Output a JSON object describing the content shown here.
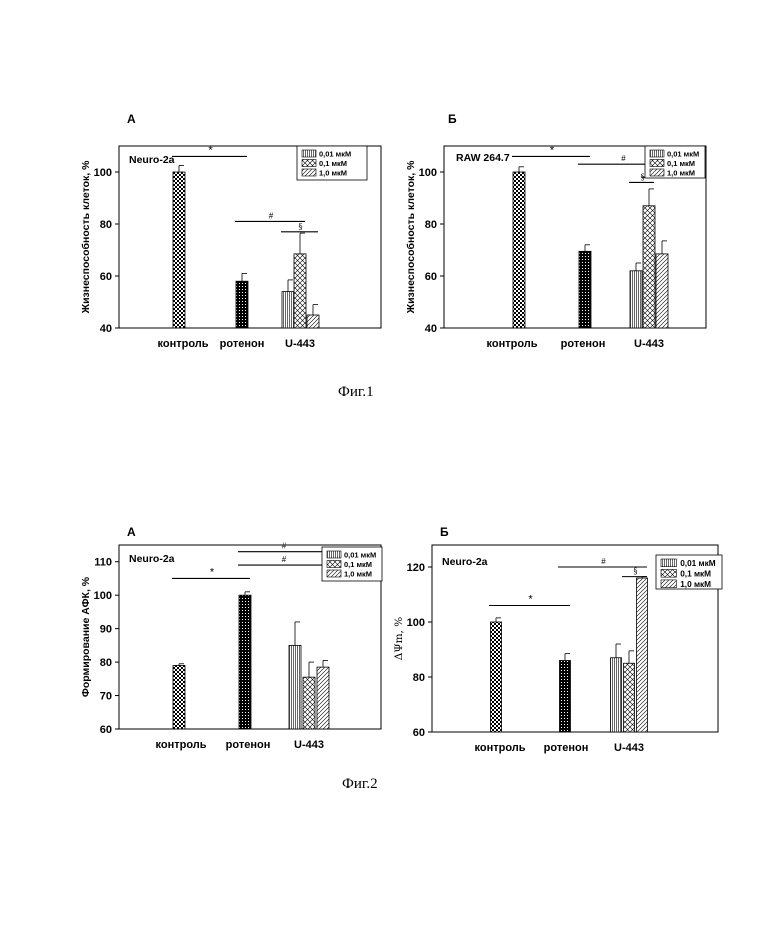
{
  "figures": [
    {
      "caption": "Фиг.1"
    },
    {
      "caption": "Фиг.2"
    }
  ],
  "legend_labels": [
    "0,01 мкМ",
    "0,1 мкМ",
    "1,0 мкМ"
  ],
  "chart_data": [
    {
      "type": "bar",
      "panel": "А",
      "subtitle": "Neuro-2a",
      "ylabel": "Жизнеспособность клеток, %",
      "ylim": [
        40,
        110
      ],
      "yticks": [
        40,
        60,
        80,
        100
      ],
      "categories": [
        "контроль",
        "ротенон",
        "U-443"
      ],
      "bars": [
        {
          "category": "контроль",
          "value": 100,
          "error": 2.5,
          "pattern": "checker"
        },
        {
          "category": "ротенон",
          "value": 58,
          "error": 3,
          "pattern": "dark"
        },
        {
          "category": "U-443",
          "series": "0,01 мкМ",
          "value": 54,
          "error": 4.5,
          "pattern": "vlines"
        },
        {
          "category": "U-443",
          "series": "0,1 мкМ",
          "value": 68.5,
          "error": 8,
          "pattern": "cross"
        },
        {
          "category": "U-443",
          "series": "1,0 мкМ",
          "value": 45,
          "error": 4,
          "pattern": "diag"
        }
      ],
      "annotations": [
        {
          "symbol": "*",
          "bracket": true,
          "from": "контроль",
          "to": "ротенон",
          "y": 106
        },
        {
          "symbol": "#",
          "bracket": true,
          "from": "ротенон",
          "to": "U-443:0,1 мкМ",
          "y": 81
        },
        {
          "symbol": "§",
          "bracket": false,
          "from": "U-443:0,01 мкМ",
          "to": "U-443:1,0 мкМ",
          "y": 77
        }
      ],
      "legend_position": "top-right",
      "grid": false
    },
    {
      "type": "bar",
      "panel": "Б",
      "subtitle": "RAW 264.7",
      "ylabel": "Жизнеспособность клеток, %",
      "ylim": [
        40,
        110
      ],
      "yticks": [
        40,
        60,
        80,
        100
      ],
      "categories": [
        "контроль",
        "ротенон",
        "U-443"
      ],
      "bars": [
        {
          "category": "контроль",
          "value": 100,
          "error": 2,
          "pattern": "checker"
        },
        {
          "category": "ротенон",
          "value": 69.5,
          "error": 2.5,
          "pattern": "dark"
        },
        {
          "category": "U-443",
          "series": "0,01 мкМ",
          "value": 62,
          "error": 3,
          "pattern": "vlines"
        },
        {
          "category": "U-443",
          "series": "0,1 мкМ",
          "value": 87,
          "error": 6.5,
          "pattern": "cross"
        },
        {
          "category": "U-443",
          "series": "1,0 мкМ",
          "value": 68.5,
          "error": 5,
          "pattern": "diag"
        }
      ],
      "annotations": [
        {
          "symbol": "*",
          "bracket": true,
          "from": "контроль",
          "to": "ротенон",
          "y": 106
        },
        {
          "symbol": "#",
          "bracket": true,
          "from": "ротенон",
          "to": "U-443:1,0 мкМ",
          "y": 103
        },
        {
          "symbol": "§",
          "bracket": false,
          "from": "U-443:0,01 мкМ",
          "to": "U-443:0,1 мкМ",
          "y": 96
        },
        {
          "symbol": "§",
          "bracket": false,
          "from": "U-443:0,1 мкМ",
          "to": "U-443:1,0 мкМ",
          "y": 98
        }
      ],
      "legend_position": "top-right",
      "grid": false
    },
    {
      "type": "bar",
      "panel": "А",
      "subtitle": "Neuro-2a",
      "ylabel": "Формирование АФК, %",
      "ylim": [
        60,
        115
      ],
      "yticks": [
        60,
        70,
        80,
        90,
        100,
        110
      ],
      "categories": [
        "контроль",
        "ротенон",
        "U-443"
      ],
      "bars": [
        {
          "category": "контроль",
          "value": 79,
          "error": 0.5,
          "pattern": "checker"
        },
        {
          "category": "ротенон",
          "value": 100,
          "error": 1,
          "pattern": "dark"
        },
        {
          "category": "U-443",
          "series": "0,01 мкМ",
          "value": 85,
          "error": 7,
          "pattern": "vlines"
        },
        {
          "category": "U-443",
          "series": "0,1 мкМ",
          "value": 75.5,
          "error": 4.5,
          "pattern": "cross"
        },
        {
          "category": "U-443",
          "series": "1,0 мкМ",
          "value": 78.5,
          "error": 2,
          "pattern": "diag"
        }
      ],
      "annotations": [
        {
          "symbol": "*",
          "bracket": true,
          "from": "контроль",
          "to": "ротенон",
          "y": 105
        },
        {
          "symbol": "#",
          "bracket": true,
          "from": "ротенон",
          "to": "U-443:1,0 мкМ",
          "y": 113
        },
        {
          "symbol": "#",
          "bracket": true,
          "from": "ротенон",
          "to": "U-443:1,0 мкМ",
          "y": 109
        }
      ],
      "legend_position": "top-right",
      "grid": false
    },
    {
      "type": "bar",
      "panel": "Б",
      "subtitle": "Neuro-2a",
      "ylabel": "ΔΨm, %",
      "ylim": [
        60,
        128
      ],
      "yticks": [
        60,
        80,
        100,
        120
      ],
      "categories": [
        "контроль",
        "ротенон",
        "U-443"
      ],
      "bars": [
        {
          "category": "контроль",
          "value": 100,
          "error": 1.5,
          "pattern": "checker"
        },
        {
          "category": "ротенон",
          "value": 86,
          "error": 2.5,
          "pattern": "dark"
        },
        {
          "category": "U-443",
          "series": "0,01 мкМ",
          "value": 87,
          "error": 5,
          "pattern": "vlines"
        },
        {
          "category": "U-443",
          "series": "0,1 мкМ",
          "value": 85,
          "error": 4.5,
          "pattern": "cross"
        },
        {
          "category": "U-443",
          "series": "1,0 мкМ",
          "value": 116,
          "error": 0.5,
          "pattern": "diag"
        }
      ],
      "annotations": [
        {
          "symbol": "*",
          "bracket": true,
          "from": "контроль",
          "to": "ротенон",
          "y": 106
        },
        {
          "symbol": "#",
          "bracket": true,
          "from": "ротенон",
          "to": "U-443:1,0 мкМ",
          "y": 120
        },
        {
          "symbol": "§",
          "bracket": false,
          "from": "U-443:0,1 мкМ",
          "to": "U-443:1,0 мкМ",
          "y": 116.5
        }
      ],
      "legend_position": "top-right",
      "grid": false
    }
  ]
}
